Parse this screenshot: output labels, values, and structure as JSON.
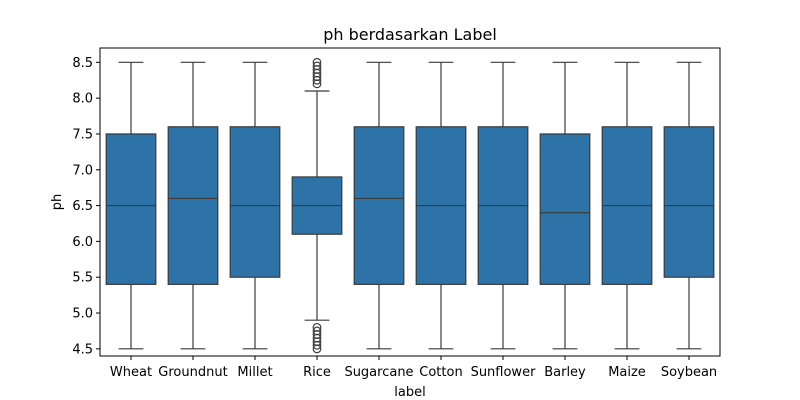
{
  "chart_data": {
    "type": "box",
    "title": "ph berdasarkan Label",
    "xlabel": "label",
    "ylabel": "ph",
    "ylim": [
      4.4,
      8.7
    ],
    "yticks": [
      "4.5",
      "5.0",
      "5.5",
      "6.0",
      "6.5",
      "7.0",
      "7.5",
      "8.0",
      "8.5"
    ],
    "grid": false,
    "box_color": "#2e73a8",
    "line_color": "#3b3b3b",
    "categories": [
      "Wheat",
      "Groundnut",
      "Millet",
      "Rice",
      "Sugarcane",
      "Cotton",
      "Sunflower",
      "Barley",
      "Maize",
      "Soybean"
    ],
    "boxes": [
      {
        "label": "Wheat",
        "whisker_low": 4.5,
        "q1": 5.4,
        "median": 6.5,
        "q3": 7.5,
        "whisker_high": 8.5,
        "outliers": []
      },
      {
        "label": "Groundnut",
        "whisker_low": 4.5,
        "q1": 5.4,
        "median": 6.6,
        "q3": 7.6,
        "whisker_high": 8.5,
        "outliers": []
      },
      {
        "label": "Millet",
        "whisker_low": 4.5,
        "q1": 5.5,
        "median": 6.5,
        "q3": 7.6,
        "whisker_high": 8.5,
        "outliers": []
      },
      {
        "label": "Rice",
        "whisker_low": 4.9,
        "q1": 6.1,
        "median": 6.5,
        "q3": 6.9,
        "whisker_high": 8.1,
        "outliers": [
          8.2,
          8.25,
          8.3,
          8.35,
          8.4,
          8.45,
          8.5,
          4.5,
          4.55,
          4.6,
          4.65,
          4.7,
          4.75,
          4.8
        ]
      },
      {
        "label": "Sugarcane",
        "whisker_low": 4.5,
        "q1": 5.4,
        "median": 6.6,
        "q3": 7.6,
        "whisker_high": 8.5,
        "outliers": []
      },
      {
        "label": "Cotton",
        "whisker_low": 4.5,
        "q1": 5.4,
        "median": 6.5,
        "q3": 7.6,
        "whisker_high": 8.5,
        "outliers": []
      },
      {
        "label": "Sunflower",
        "whisker_low": 4.5,
        "q1": 5.4,
        "median": 6.5,
        "q3": 7.6,
        "whisker_high": 8.5,
        "outliers": []
      },
      {
        "label": "Barley",
        "whisker_low": 4.5,
        "q1": 5.4,
        "median": 6.4,
        "q3": 7.5,
        "whisker_high": 8.5,
        "outliers": []
      },
      {
        "label": "Maize",
        "whisker_low": 4.5,
        "q1": 5.4,
        "median": 6.5,
        "q3": 7.6,
        "whisker_high": 8.5,
        "outliers": []
      },
      {
        "label": "Soybean",
        "whisker_low": 4.5,
        "q1": 5.5,
        "median": 6.5,
        "q3": 7.6,
        "whisker_high": 8.5,
        "outliers": []
      }
    ]
  }
}
